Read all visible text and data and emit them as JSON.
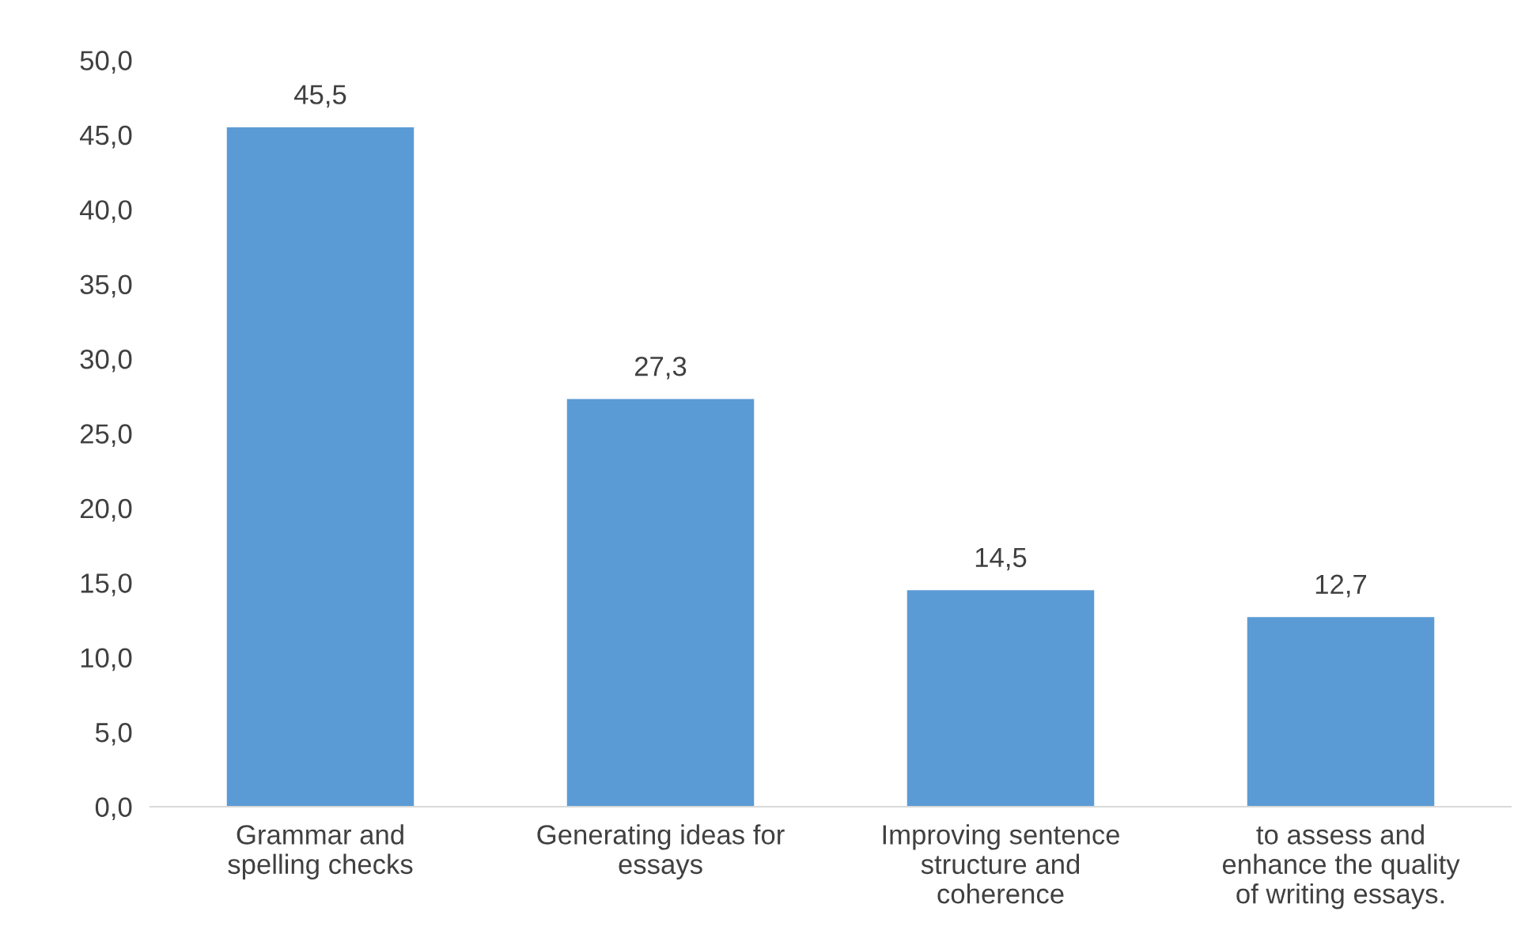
{
  "chart_data": {
    "type": "bar",
    "categories": [
      "Grammar and\nspelling checks",
      "Generating ideas for\nessays",
      "Improving sentence\nstructure and\ncoherence",
      "to assess and\nenhance the quality\nof writing essays."
    ],
    "values": [
      45.5,
      27.3,
      14.5,
      12.7
    ],
    "value_labels": [
      "45,5",
      "27,3",
      "14,5",
      "12,7"
    ],
    "color": "#5b9bd5",
    "ylim": [
      0,
      50
    ],
    "yticks": [
      {
        "value": 0,
        "label": "0,0"
      },
      {
        "value": 5,
        "label": "5,0"
      },
      {
        "value": 10,
        "label": "10,0"
      },
      {
        "value": 15,
        "label": "15,0"
      },
      {
        "value": 20,
        "label": "20,0"
      },
      {
        "value": 25,
        "label": "25,0"
      },
      {
        "value": 30,
        "label": "30,0"
      },
      {
        "value": 35,
        "label": "35,0"
      },
      {
        "value": 40,
        "label": "40,0"
      },
      {
        "value": 45,
        "label": "45,0"
      },
      {
        "value": 50,
        "label": "50,0"
      }
    ],
    "grid": false
  }
}
